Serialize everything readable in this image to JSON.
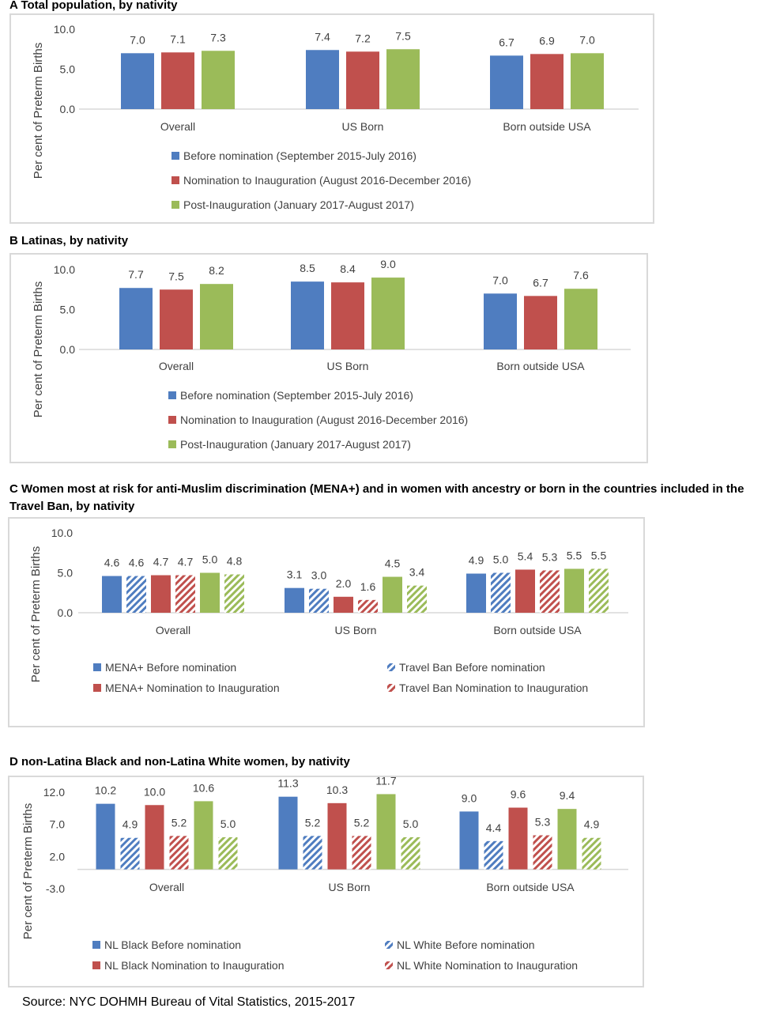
{
  "source": "Source: NYC DOHMH Bureau of Vital Statistics, 2015-2017",
  "colors": {
    "blue": "#4f7dc0",
    "red": "#c0504d",
    "green": "#9bbb59"
  },
  "chart_data": [
    {
      "panel": "A",
      "type": "bar",
      "title": "A  Total population, by nativity",
      "ylabel": "Per cent of Preterm Births",
      "yticks": [
        "10.0",
        "5.0",
        "0.0"
      ],
      "ylim": [
        0,
        10
      ],
      "categories": [
        "Overall",
        "US Born",
        "Born outside USA"
      ],
      "series": [
        {
          "name": "Before nomination (September 2015-July 2016)",
          "color": "blue",
          "pattern": "solid",
          "values": [
            7.0,
            7.4,
            6.7
          ],
          "labels": [
            "7.0",
            "7.4",
            "6.7"
          ]
        },
        {
          "name": "Nomination to Inauguration (August 2016-December 2016)",
          "color": "red",
          "pattern": "solid",
          "values": [
            7.1,
            7.2,
            6.9
          ],
          "labels": [
            "7.1",
            "7.2",
            "6.9"
          ]
        },
        {
          "name": "Post-Inauguration (January 2017-August 2017)",
          "color": "green",
          "pattern": "solid",
          "values": [
            7.3,
            7.5,
            7.0
          ],
          "labels": [
            "7.3",
            "7.5",
            "7.0"
          ]
        }
      ],
      "legend": "bottom"
    },
    {
      "panel": "B",
      "type": "bar",
      "title": "B  Latinas, by nativity",
      "ylabel": "Per cent of Preterm Births",
      "yticks": [
        "10.0",
        "5.0",
        "0.0"
      ],
      "ylim": [
        0,
        10
      ],
      "categories": [
        "Overall",
        "US Born",
        "Born outside USA"
      ],
      "series": [
        {
          "name": "Before nomination (September 2015-July 2016)",
          "color": "blue",
          "pattern": "solid",
          "values": [
            7.7,
            8.5,
            7.0
          ],
          "labels": [
            "7.7",
            "8.5",
            "7.0"
          ]
        },
        {
          "name": "Nomination to Inauguration (August 2016-December 2016)",
          "color": "red",
          "pattern": "solid",
          "values": [
            7.5,
            8.4,
            6.7
          ],
          "labels": [
            "7.5",
            "8.4",
            "6.7"
          ]
        },
        {
          "name": "Post-Inauguration (January 2017-August 2017)",
          "color": "green",
          "pattern": "solid",
          "values": [
            8.2,
            9.0,
            7.6
          ],
          "labels": [
            "8.2",
            "9.0",
            "7.6"
          ]
        }
      ],
      "legend": "bottom"
    },
    {
      "panel": "C",
      "type": "bar",
      "title": "C  Women most at risk for anti-Muslim discrimination (MENA+) and in women with ancestry or born in the countries included in the Travel Ban, by nativity",
      "ylabel": "Per cent of Preterm Births",
      "yticks": [
        "10.0",
        "5.0",
        "0.0"
      ],
      "ylim": [
        0,
        10
      ],
      "categories": [
        "Overall",
        "US Born",
        "Born outside USA"
      ],
      "series": [
        {
          "name": "MENA+ Before nomination",
          "color": "blue",
          "pattern": "solid",
          "values": [
            4.6,
            3.1,
            4.9
          ],
          "labels": [
            "4.6",
            "3.1",
            "4.9"
          ]
        },
        {
          "name": "Travel Ban Before nomination",
          "color": "blue",
          "pattern": "hatch",
          "values": [
            4.6,
            3.0,
            5.0
          ],
          "labels": [
            "4.6",
            "3.0",
            "5.0"
          ]
        },
        {
          "name": "MENA+ Nomination to Inauguration",
          "color": "red",
          "pattern": "solid",
          "values": [
            4.7,
            2.0,
            5.4
          ],
          "labels": [
            "4.7",
            "2.0",
            "5.4"
          ]
        },
        {
          "name": "Travel Ban Nomination to Inauguration",
          "color": "red",
          "pattern": "hatch",
          "values": [
            4.7,
            1.6,
            5.3
          ],
          "labels": [
            "4.7",
            "1.6",
            "5.3"
          ]
        },
        {
          "name": "",
          "color": "green",
          "pattern": "solid",
          "values": [
            5.0,
            4.5,
            5.5
          ],
          "labels": [
            "5.0",
            "4.5",
            "5.5"
          ]
        },
        {
          "name": "",
          "color": "green",
          "pattern": "hatch",
          "values": [
            4.8,
            3.4,
            5.5
          ],
          "labels": [
            "4.8",
            "3.4",
            "5.5"
          ]
        }
      ],
      "legend": "bottom"
    },
    {
      "panel": "D",
      "type": "bar",
      "title": "D   non-Latina Black and non-Latina White women, by nativity",
      "ylabel": "Per cent of Preterm Births",
      "yticks": [
        "12.0",
        "7.0",
        "2.0",
        "-3.0"
      ],
      "ylim": [
        -3,
        12
      ],
      "categories": [
        "Overall",
        "US Born",
        "Born outside USA"
      ],
      "series": [
        {
          "name": "NL Black Before nomination",
          "color": "blue",
          "pattern": "solid",
          "values": [
            10.2,
            11.3,
            9.0
          ],
          "labels": [
            "10.2",
            "11.3",
            "9.0"
          ]
        },
        {
          "name": "NL White Before nomination",
          "color": "blue",
          "pattern": "hatch",
          "values": [
            4.9,
            5.2,
            4.4
          ],
          "labels": [
            "4.9",
            "5.2",
            "4.4"
          ]
        },
        {
          "name": "NL Black Nomination to Inauguration",
          "color": "red",
          "pattern": "solid",
          "values": [
            10.0,
            10.3,
            9.6
          ],
          "labels": [
            "10.0",
            "10.3",
            "9.6"
          ]
        },
        {
          "name": "NL White Nomination to Inauguration",
          "color": "red",
          "pattern": "hatch",
          "values": [
            5.2,
            5.2,
            5.3
          ],
          "labels": [
            "5.2",
            "5.2",
            "5.3"
          ]
        },
        {
          "name": "",
          "color": "green",
          "pattern": "solid",
          "values": [
            10.6,
            11.7,
            9.4
          ],
          "labels": [
            "10.6",
            "11.7",
            "9.4"
          ]
        },
        {
          "name": "",
          "color": "green",
          "pattern": "hatch",
          "values": [
            5.0,
            5.0,
            4.9
          ],
          "labels": [
            "5.0",
            "5.0",
            "4.9"
          ]
        }
      ],
      "legend": "bottom"
    }
  ]
}
